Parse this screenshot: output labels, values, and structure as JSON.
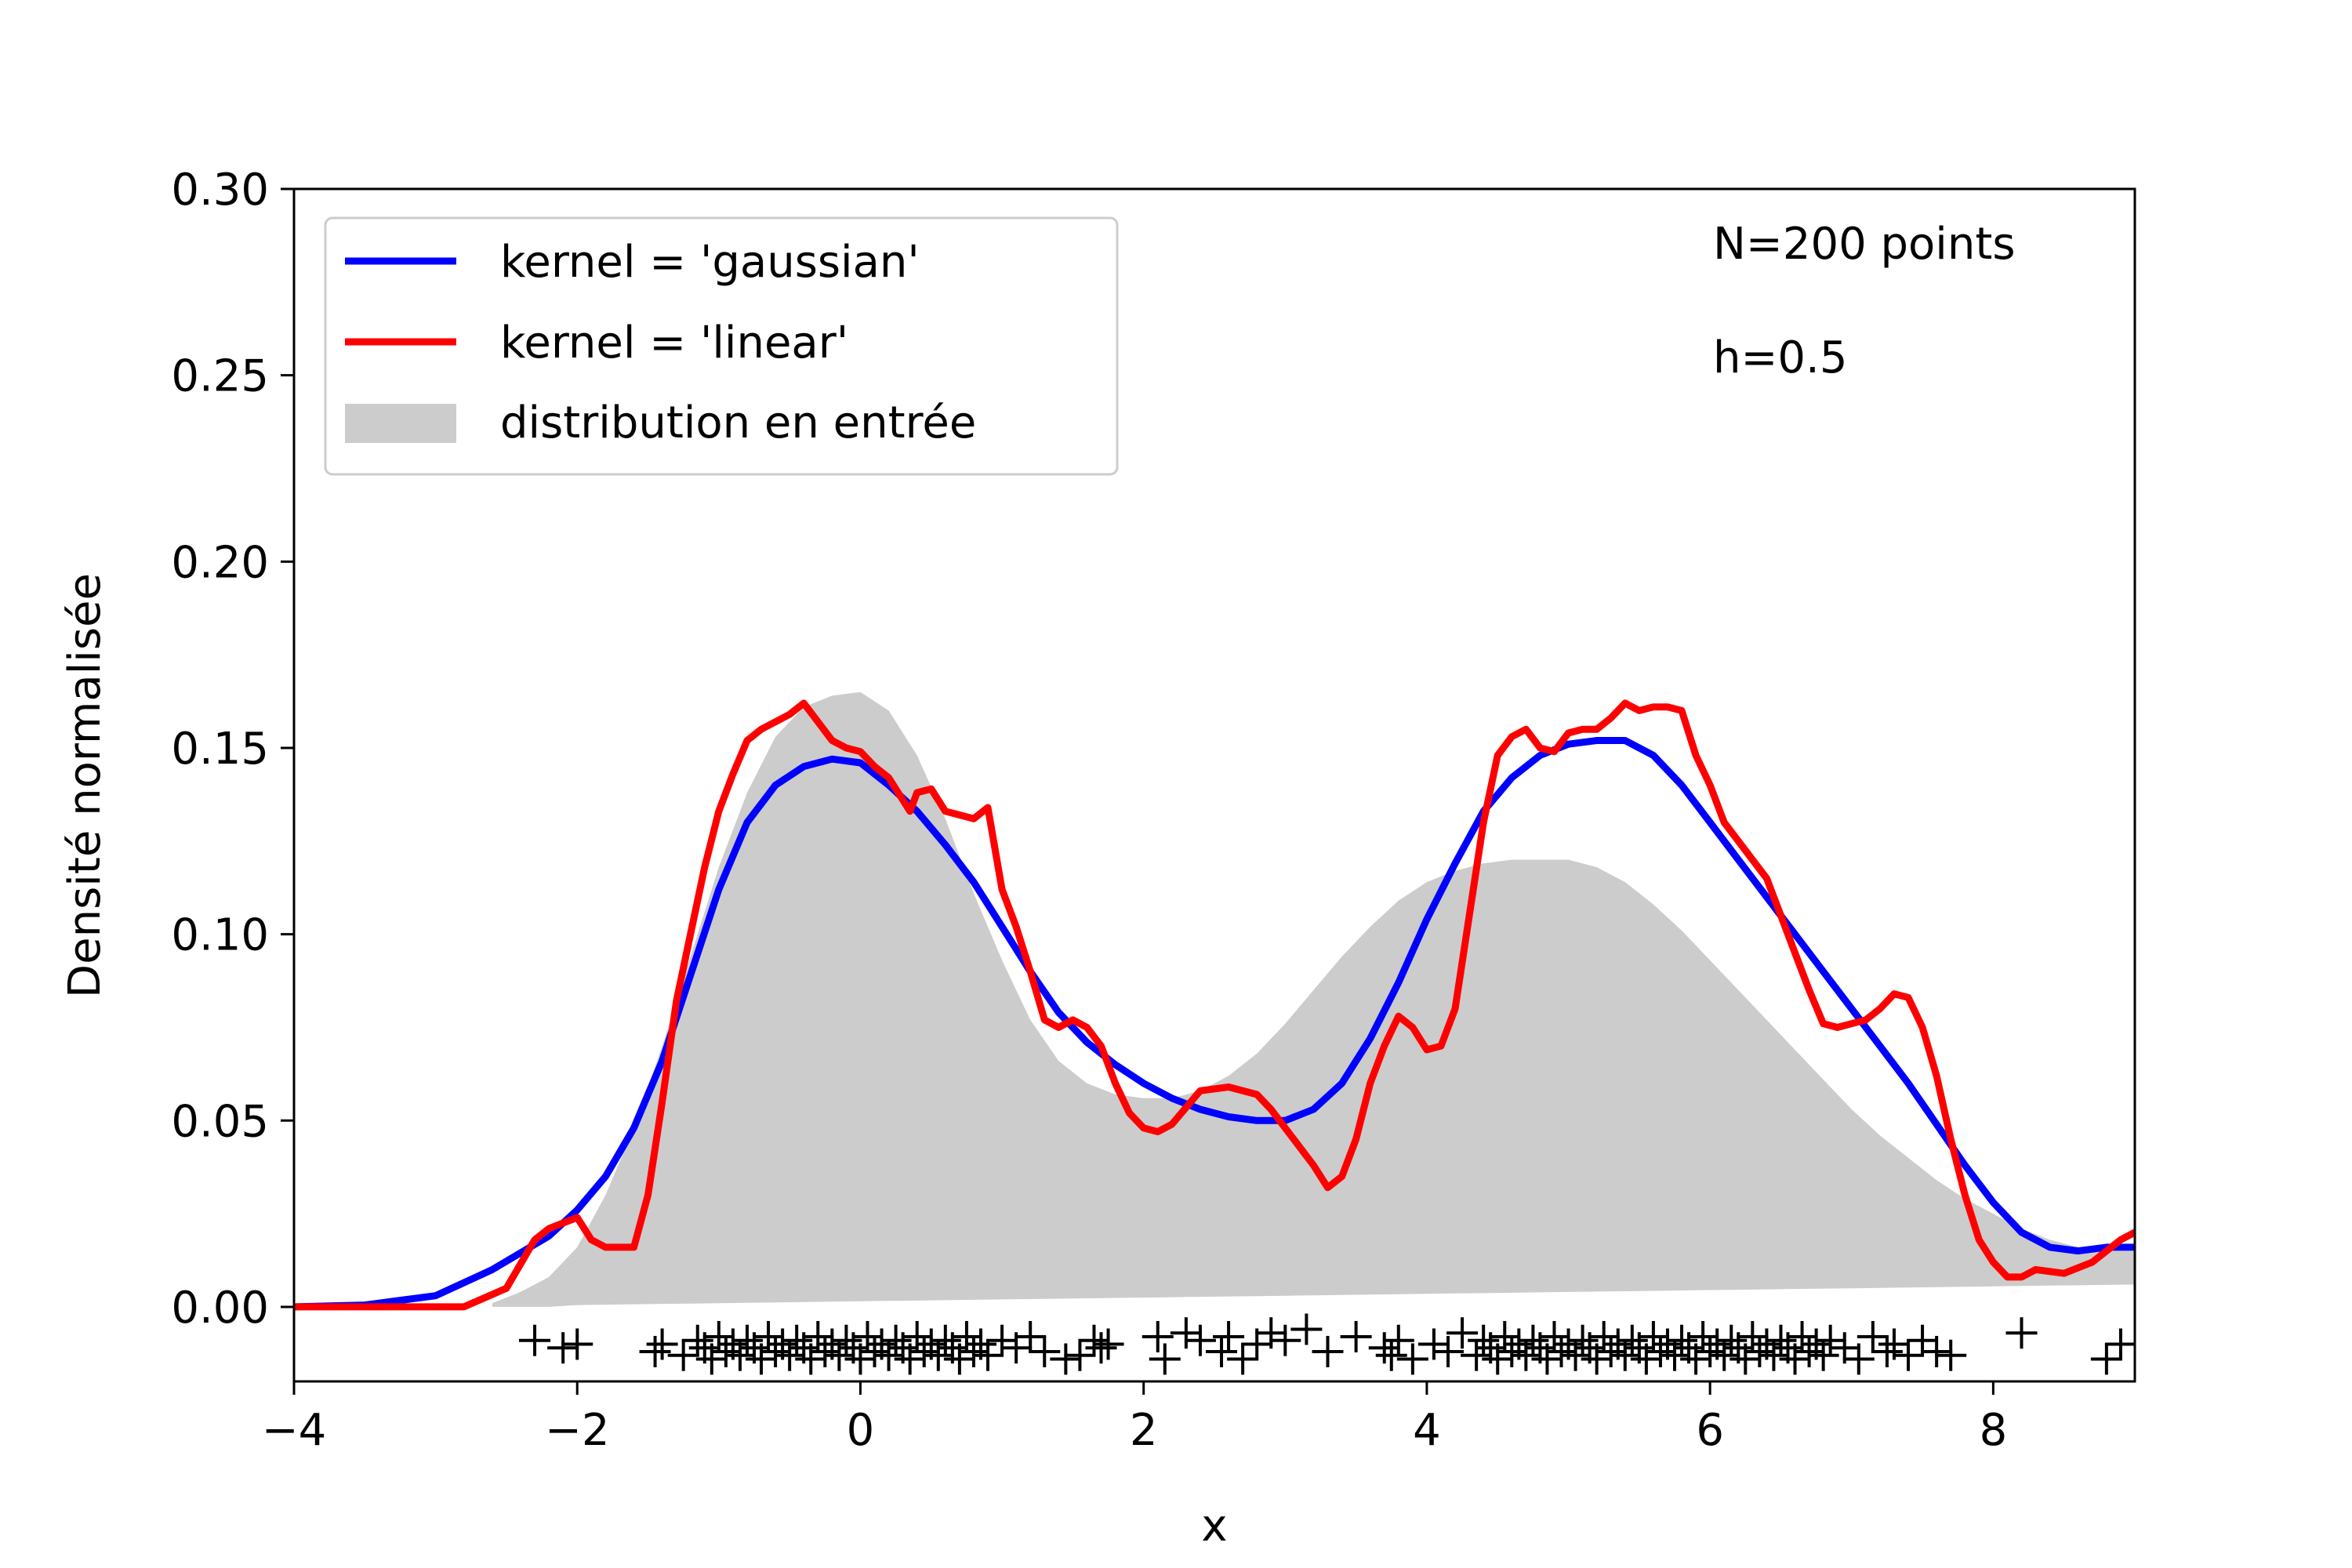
{
  "chart_data": {
    "type": "line",
    "xlabel": "x",
    "ylabel": "Densité normalisée",
    "xlim": [
      -4,
      9
    ],
    "ylim": [
      -0.02,
      0.3
    ],
    "xticks": [
      -4,
      -2,
      0,
      2,
      4,
      6,
      8
    ],
    "xtick_labels": [
      "−4",
      "−2",
      "0",
      "2",
      "4",
      "6",
      "8"
    ],
    "yticks": [
      0.0,
      0.05,
      0.1,
      0.15,
      0.2,
      0.25,
      0.3
    ],
    "ytick_labels": [
      "0.00",
      "0.05",
      "0.10",
      "0.15",
      "0.20",
      "0.25",
      "0.30"
    ],
    "grid": false,
    "legend_position": "top-left",
    "annotations": [
      "N=200 points",
      "h=0.5"
    ],
    "series": [
      {
        "name": "kernel = 'gaussian'",
        "color": "#0000ff",
        "kind": "line",
        "x": [
          -4.0,
          -3.5,
          -3.0,
          -2.6,
          -2.2,
          -2.0,
          -1.8,
          -1.6,
          -1.4,
          -1.2,
          -1.0,
          -0.8,
          -0.6,
          -0.4,
          -0.2,
          0.0,
          0.2,
          0.4,
          0.6,
          0.8,
          1.0,
          1.2,
          1.4,
          1.6,
          1.8,
          2.0,
          2.2,
          2.4,
          2.6,
          2.8,
          3.0,
          3.2,
          3.4,
          3.6,
          3.8,
          4.0,
          4.2,
          4.4,
          4.6,
          4.8,
          5.0,
          5.2,
          5.4,
          5.6,
          5.8,
          6.0,
          6.2,
          6.4,
          6.6,
          6.8,
          7.0,
          7.2,
          7.4,
          7.6,
          7.8,
          8.0,
          8.2,
          8.4,
          8.6,
          8.8,
          9.0
        ],
        "y": [
          0.0,
          0.0005,
          0.003,
          0.01,
          0.019,
          0.026,
          0.035,
          0.048,
          0.066,
          0.089,
          0.112,
          0.13,
          0.14,
          0.145,
          0.147,
          0.146,
          0.14,
          0.133,
          0.124,
          0.114,
          0.102,
          0.09,
          0.079,
          0.071,
          0.065,
          0.06,
          0.056,
          0.053,
          0.051,
          0.05,
          0.05,
          0.053,
          0.06,
          0.072,
          0.087,
          0.104,
          0.119,
          0.133,
          0.142,
          0.148,
          0.151,
          0.152,
          0.152,
          0.148,
          0.14,
          0.13,
          0.12,
          0.11,
          0.1,
          0.09,
          0.08,
          0.07,
          0.06,
          0.049,
          0.038,
          0.028,
          0.02,
          0.016,
          0.015,
          0.016,
          0.016
        ]
      },
      {
        "name": "kernel = 'linear'",
        "color": "#ff0000",
        "kind": "line",
        "x": [
          -4.0,
          -2.8,
          -2.5,
          -2.3,
          -2.2,
          -2.0,
          -1.9,
          -1.8,
          -1.6,
          -1.5,
          -1.4,
          -1.3,
          -1.2,
          -1.1,
          -1.0,
          -0.9,
          -0.8,
          -0.7,
          -0.6,
          -0.5,
          -0.4,
          -0.3,
          -0.2,
          -0.1,
          0.0,
          0.1,
          0.2,
          0.3,
          0.35,
          0.4,
          0.5,
          0.6,
          0.7,
          0.8,
          0.9,
          1.0,
          1.1,
          1.2,
          1.3,
          1.4,
          1.5,
          1.6,
          1.7,
          1.8,
          1.9,
          2.0,
          2.1,
          2.2,
          2.4,
          2.6,
          2.8,
          2.9,
          3.0,
          3.1,
          3.2,
          3.3,
          3.4,
          3.5,
          3.6,
          3.7,
          3.8,
          3.9,
          4.0,
          4.1,
          4.2,
          4.3,
          4.4,
          4.5,
          4.6,
          4.7,
          4.8,
          4.9,
          5.0,
          5.1,
          5.2,
          5.3,
          5.4,
          5.5,
          5.6,
          5.7,
          5.8,
          5.9,
          6.0,
          6.1,
          6.2,
          6.3,
          6.4,
          6.5,
          6.6,
          6.7,
          6.8,
          6.9,
          7.0,
          7.1,
          7.2,
          7.3,
          7.4,
          7.5,
          7.6,
          7.7,
          7.8,
          7.9,
          8.0,
          8.1,
          8.2,
          8.3,
          8.5,
          8.7,
          8.9,
          9.0
        ],
        "y": [
          0.0,
          0.0,
          0.005,
          0.018,
          0.021,
          0.024,
          0.018,
          0.016,
          0.016,
          0.03,
          0.055,
          0.082,
          0.1,
          0.118,
          0.133,
          0.143,
          0.152,
          0.155,
          0.157,
          0.159,
          0.162,
          0.157,
          0.152,
          0.15,
          0.149,
          0.145,
          0.142,
          0.136,
          0.133,
          0.138,
          0.139,
          0.133,
          0.132,
          0.131,
          0.134,
          0.112,
          0.102,
          0.09,
          0.077,
          0.075,
          0.077,
          0.075,
          0.07,
          0.06,
          0.052,
          0.048,
          0.047,
          0.049,
          0.058,
          0.059,
          0.057,
          0.053,
          0.048,
          0.043,
          0.038,
          0.032,
          0.035,
          0.045,
          0.06,
          0.07,
          0.078,
          0.075,
          0.069,
          0.07,
          0.08,
          0.105,
          0.13,
          0.148,
          0.153,
          0.155,
          0.15,
          0.149,
          0.154,
          0.155,
          0.155,
          0.158,
          0.162,
          0.16,
          0.161,
          0.161,
          0.16,
          0.148,
          0.14,
          0.13,
          0.125,
          0.12,
          0.115,
          0.105,
          0.095,
          0.085,
          0.076,
          0.075,
          0.076,
          0.077,
          0.08,
          0.084,
          0.083,
          0.075,
          0.062,
          0.045,
          0.03,
          0.018,
          0.012,
          0.008,
          0.008,
          0.01,
          0.009,
          0.012,
          0.018,
          0.02
        ]
      },
      {
        "name": "distribution en entrée",
        "color": "#cccccc",
        "kind": "area",
        "x": [
          -2.6,
          -2.4,
          -2.2,
          -2.0,
          -1.8,
          -1.6,
          -1.4,
          -1.2,
          -1.0,
          -0.8,
          -0.6,
          -0.4,
          -0.2,
          0.0,
          0.2,
          0.4,
          0.6,
          0.8,
          1.0,
          1.2,
          1.4,
          1.6,
          1.8,
          2.0,
          2.2,
          2.4,
          2.6,
          2.8,
          3.0,
          3.2,
          3.4,
          3.6,
          3.8,
          4.0,
          4.2,
          4.4,
          4.6,
          4.8,
          5.0,
          5.2,
          5.4,
          5.6,
          5.8,
          6.0,
          6.2,
          6.4,
          6.6,
          6.8,
          7.0,
          7.2,
          7.4,
          7.6,
          7.8,
          8.0,
          8.2,
          8.4,
          8.6,
          8.8,
          9.0
        ],
        "y": [
          0.001,
          0.004,
          0.008,
          0.016,
          0.03,
          0.048,
          0.07,
          0.094,
          0.118,
          0.138,
          0.153,
          0.161,
          0.164,
          0.165,
          0.16,
          0.148,
          0.131,
          0.111,
          0.093,
          0.077,
          0.066,
          0.06,
          0.057,
          0.056,
          0.056,
          0.058,
          0.062,
          0.068,
          0.076,
          0.085,
          0.094,
          0.102,
          0.109,
          0.114,
          0.117,
          0.119,
          0.12,
          0.12,
          0.12,
          0.118,
          0.114,
          0.108,
          0.101,
          0.093,
          0.085,
          0.077,
          0.069,
          0.061,
          0.053,
          0.046,
          0.04,
          0.034,
          0.029,
          0.025,
          0.021,
          0.018,
          0.016,
          0.015,
          0.015
        ],
        "base": [
          0.0,
          0.0,
          0.0,
          0.0005,
          0.0006,
          0.0007,
          0.0008,
          0.0009,
          0.001,
          0.0011,
          0.0012,
          0.0013,
          0.0014,
          0.0015,
          0.0016,
          0.0017,
          0.0018,
          0.0019,
          0.002,
          0.0021,
          0.0022,
          0.0023,
          0.0024,
          0.0025,
          0.0026,
          0.0027,
          0.0028,
          0.0029,
          0.003,
          0.0031,
          0.0032,
          0.0033,
          0.0034,
          0.0035,
          0.0036,
          0.0037,
          0.0038,
          0.0039,
          0.004,
          0.0041,
          0.0042,
          0.0043,
          0.0044,
          0.0045,
          0.0046,
          0.0047,
          0.0048,
          0.0049,
          0.005,
          0.0051,
          0.0052,
          0.0053,
          0.0054,
          0.0055,
          0.0056,
          0.0057,
          0.0058,
          0.0059,
          0.006
        ]
      }
    ],
    "sample_points": {
      "marker": "+",
      "color": "#000000",
      "x": [
        -2.3,
        -2.1,
        -2.0,
        -1.45,
        -1.4,
        -1.25,
        -1.15,
        -1.1,
        -1.05,
        -1.0,
        -0.95,
        -0.9,
        -0.85,
        -0.8,
        -0.75,
        -0.7,
        -0.65,
        -0.6,
        -0.55,
        -0.5,
        -0.45,
        -0.4,
        -0.35,
        -0.3,
        -0.25,
        -0.2,
        -0.15,
        -0.1,
        -0.05,
        0.0,
        0.05,
        0.1,
        0.15,
        0.2,
        0.25,
        0.3,
        0.35,
        0.4,
        0.45,
        0.5,
        0.55,
        0.6,
        0.65,
        0.7,
        0.75,
        0.8,
        0.85,
        0.9,
        1.0,
        1.1,
        1.2,
        1.3,
        1.45,
        1.55,
        1.65,
        1.7,
        1.75,
        2.1,
        2.15,
        2.3,
        2.4,
        2.55,
        2.6,
        2.7,
        2.8,
        2.9,
        3.0,
        3.15,
        3.3,
        3.5,
        3.7,
        3.75,
        3.8,
        3.9,
        4.05,
        4.15,
        4.25,
        4.35,
        4.4,
        4.45,
        4.5,
        4.55,
        4.6,
        4.65,
        4.7,
        4.75,
        4.8,
        4.85,
        4.9,
        4.95,
        5.0,
        5.05,
        5.1,
        5.15,
        5.2,
        5.25,
        5.3,
        5.35,
        5.4,
        5.45,
        5.5,
        5.55,
        5.6,
        5.65,
        5.7,
        5.75,
        5.8,
        5.85,
        5.9,
        5.95,
        6.0,
        6.05,
        6.1,
        6.15,
        6.2,
        6.25,
        6.3,
        6.35,
        6.4,
        6.45,
        6.5,
        6.55,
        6.6,
        6.65,
        6.7,
        6.75,
        6.8,
        6.85,
        6.95,
        7.05,
        7.15,
        7.25,
        7.3,
        7.4,
        7.5,
        7.6,
        7.7,
        8.2,
        8.8,
        8.9
      ],
      "y": [
        -0.009,
        -0.011,
        -0.01,
        -0.012,
        -0.01,
        -0.013,
        -0.009,
        -0.011,
        -0.014,
        -0.008,
        -0.012,
        -0.01,
        -0.013,
        -0.009,
        -0.011,
        -0.014,
        -0.008,
        -0.012,
        -0.01,
        -0.013,
        -0.009,
        -0.011,
        -0.014,
        -0.008,
        -0.012,
        -0.01,
        -0.013,
        -0.009,
        -0.011,
        -0.014,
        -0.008,
        -0.012,
        -0.01,
        -0.013,
        -0.009,
        -0.011,
        -0.014,
        -0.008,
        -0.012,
        -0.01,
        -0.013,
        -0.009,
        -0.011,
        -0.014,
        -0.008,
        -0.012,
        -0.01,
        -0.013,
        -0.009,
        -0.011,
        -0.008,
        -0.012,
        -0.014,
        -0.013,
        -0.009,
        -0.011,
        -0.01,
        -0.008,
        -0.014,
        -0.007,
        -0.009,
        -0.012,
        -0.008,
        -0.014,
        -0.01,
        -0.007,
        -0.009,
        -0.006,
        -0.012,
        -0.008,
        -0.011,
        -0.013,
        -0.009,
        -0.014,
        -0.01,
        -0.012,
        -0.007,
        -0.013,
        -0.009,
        -0.011,
        -0.014,
        -0.008,
        -0.012,
        -0.01,
        -0.013,
        -0.009,
        -0.011,
        -0.014,
        -0.008,
        -0.012,
        -0.01,
        -0.013,
        -0.009,
        -0.011,
        -0.014,
        -0.008,
        -0.012,
        -0.01,
        -0.013,
        -0.009,
        -0.011,
        -0.014,
        -0.008,
        -0.012,
        -0.01,
        -0.013,
        -0.009,
        -0.011,
        -0.014,
        -0.008,
        -0.012,
        -0.01,
        -0.013,
        -0.009,
        -0.011,
        -0.014,
        -0.008,
        -0.012,
        -0.01,
        -0.013,
        -0.009,
        -0.011,
        -0.014,
        -0.008,
        -0.012,
        -0.01,
        -0.013,
        -0.009,
        -0.011,
        -0.014,
        -0.008,
        -0.012,
        -0.01,
        -0.013,
        -0.009,
        -0.012,
        -0.013,
        -0.007,
        -0.014,
        -0.01
      ]
    }
  }
}
